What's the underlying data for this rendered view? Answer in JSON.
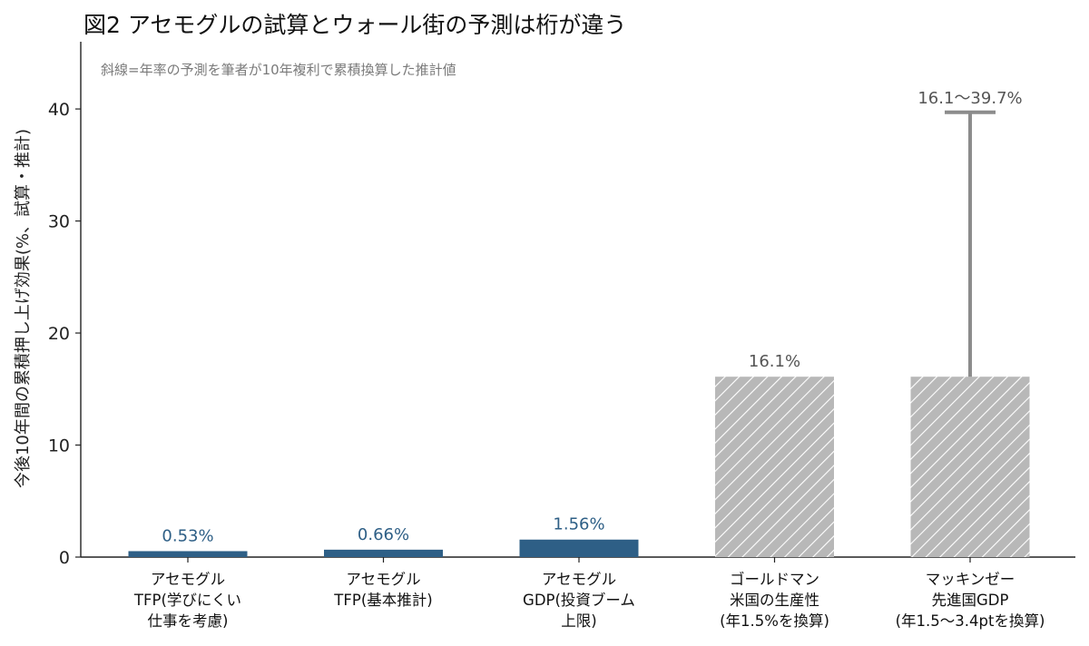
{
  "title": "図2 アセモグルの試算とウォール街の予測は桁が違う",
  "chart_data": {
    "type": "bar",
    "note": "斜線=年率の予測を筆者が10年複利で累積換算した推計値",
    "ylabel": "今後10年間の累積押し上げ効果(%、試算・推計)",
    "ylim": [
      0,
      46
    ],
    "yticks": [
      0,
      10,
      20,
      30,
      40
    ],
    "categories": [
      [
        "アセモグル",
        "TFP(学びにくい",
        "仕事を考慮)"
      ],
      [
        "アセモグル",
        "TFP(基本推計)"
      ],
      [
        "アセモグル",
        "GDP(投資ブーム",
        "上限)"
      ],
      [
        "ゴールドマン",
        "米国の生産性",
        "(年1.5%を換算)"
      ],
      [
        "マッキンゼー",
        "先進国GDP",
        "(年1.5〜3.4ptを換算)"
      ]
    ],
    "values": [
      0.53,
      0.66,
      1.56,
      16.1,
      16.1
    ],
    "value_labels": [
      "0.53%",
      "0.66%",
      "1.56%",
      "16.1%",
      "16.1〜39.7%"
    ],
    "styles": [
      "solid",
      "solid",
      "solid",
      "hatched",
      "hatched"
    ],
    "range_upper": [
      null,
      null,
      null,
      null,
      39.7
    ],
    "colors": {
      "solid": "#2e5f86",
      "hatched_fill": "#b8b8b8",
      "hatch_line": "#ffffff",
      "range": "#8c8c8c",
      "axis": "#222222"
    }
  }
}
